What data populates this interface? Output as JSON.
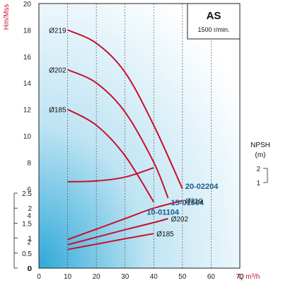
{
  "header": {
    "title": "AS",
    "speed": "1500 r/min."
  },
  "colors": {
    "curve": "#c8102e",
    "model_label": "#1a5a8c",
    "axis_label": "#c8102e",
    "plot_bg_inner": "#2fa9d8",
    "plot_bg_outer": "#ffffff"
  },
  "chart_data": [
    {
      "type": "line",
      "name": "head",
      "ylabel": "Hm/Mss",
      "ylim": [
        0,
        20
      ],
      "yticks": [
        "0",
        "2",
        "4",
        "6",
        "8",
        "10",
        "12",
        "14",
        "16",
        "18",
        "20"
      ],
      "series": [
        {
          "label": "Ø219",
          "model": "20-02204",
          "x": [
            10,
            20,
            30,
            40,
            50
          ],
          "y": [
            18.0,
            17.0,
            14.8,
            10.8,
            6.0
          ]
        },
        {
          "label": "Ø202",
          "model": "15-01504",
          "x": [
            10,
            20,
            30,
            40,
            45
          ],
          "y": [
            15.0,
            14.0,
            11.8,
            8.0,
            5.3
          ]
        },
        {
          "label": "Ø185",
          "model": "10-01104",
          "x": [
            10,
            20,
            30,
            40
          ],
          "y": [
            12.0,
            10.8,
            8.5,
            5.0
          ]
        }
      ]
    },
    {
      "type": "line",
      "name": "npsh",
      "ylabel": "NPSH (m)",
      "ylim": [
        1,
        2
      ],
      "yticks": [
        "1",
        "2"
      ],
      "series": [
        {
          "x": [
            10,
            20,
            30,
            40
          ],
          "y": [
            1.05,
            1.1,
            1.35,
            1.95
          ]
        }
      ]
    },
    {
      "type": "line",
      "name": "power",
      "ylim": [
        0,
        2.5
      ],
      "yticks": [
        "0",
        "0.5",
        "1",
        "1.5",
        "2",
        "2.5"
      ],
      "xlabel": "Q m³/h",
      "xlim": [
        0,
        70
      ],
      "xticks": [
        "0",
        "10",
        "20",
        "30",
        "40",
        "50",
        "60",
        "70"
      ],
      "series": [
        {
          "label": "Ø219",
          "x": [
            10,
            20,
            30,
            40,
            50
          ],
          "y": [
            0.95,
            1.3,
            1.65,
            2.0,
            2.25
          ]
        },
        {
          "label": "Ø202",
          "x": [
            10,
            20,
            30,
            40,
            45
          ],
          "y": [
            0.78,
            1.03,
            1.28,
            1.52,
            1.65
          ]
        },
        {
          "label": "Ø185",
          "x": [
            10,
            20,
            30,
            40
          ],
          "y": [
            0.62,
            0.8,
            0.98,
            1.15
          ]
        }
      ]
    }
  ]
}
